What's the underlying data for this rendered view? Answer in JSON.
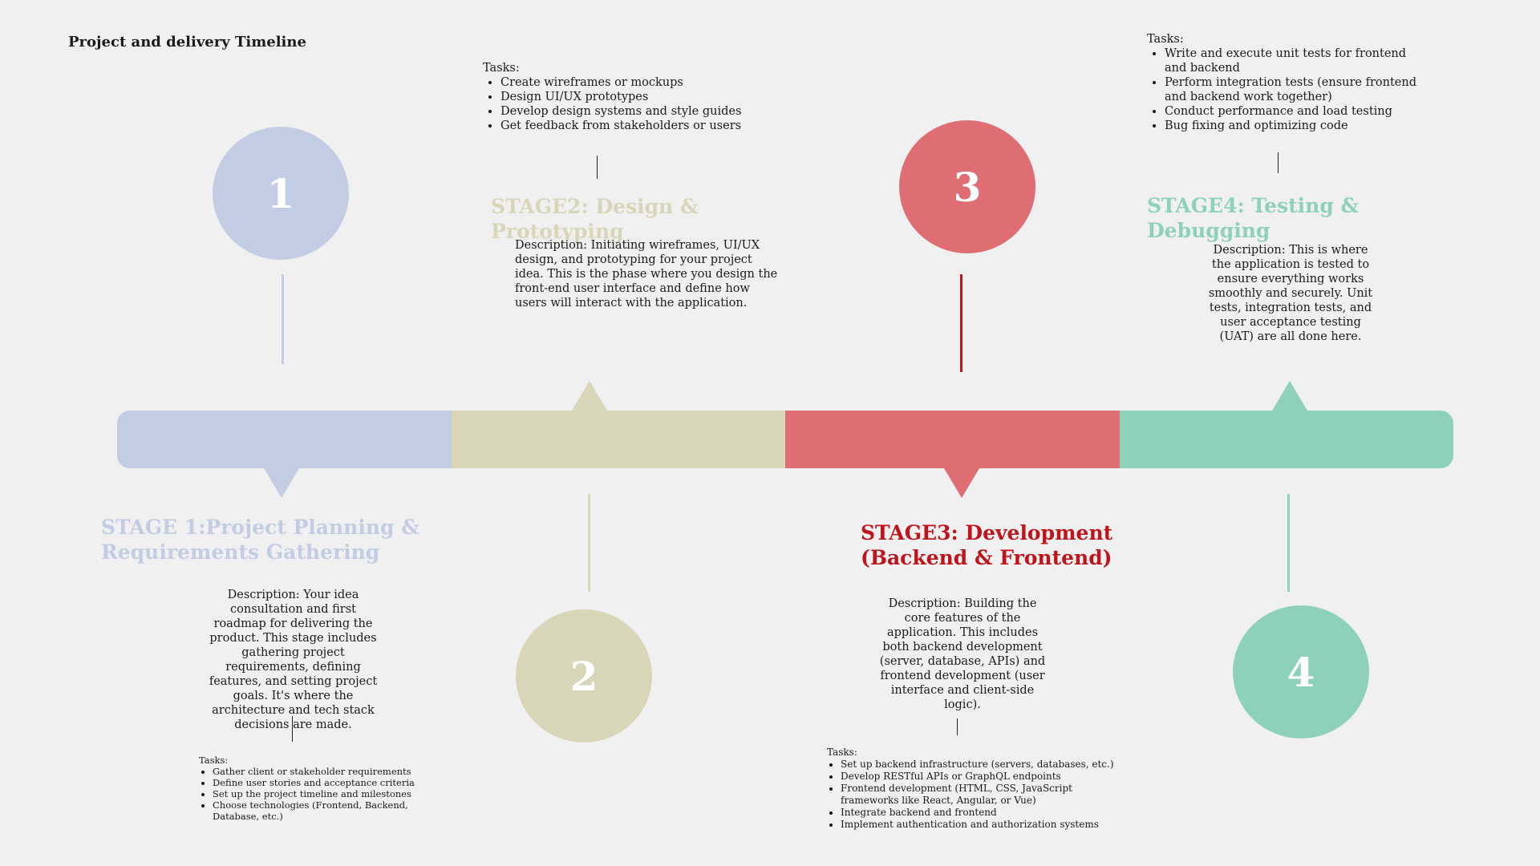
{
  "title": "Project and delivery Timeline",
  "colors": {
    "stage1": "#c2cde3",
    "stage2": "#d8d6b8",
    "stage3": "#de6e73",
    "stage3_title": "#c0141d",
    "stage4": "#8dd1bd"
  },
  "stages": [
    {
      "number": "1",
      "title": "STAGE 1:Project Planning & Requirements Gathering",
      "description": "Description: Your idea consultation and first roadmap for delivering the product. This stage includes gathering project requirements, defining features, and setting project goals. It's where the architecture and tech stack decisions are made.",
      "tasks_label": "Tasks:",
      "tasks": [
        "Gather client or stakeholder requirements",
        "Define user stories and acceptance criteria",
        "Set up the project timeline and milestones",
        "Choose technologies (Frontend, Backend, Database, etc.)"
      ]
    },
    {
      "number": "2",
      "title": "STAGE2: Design & Prototyping",
      "description": "Description: Initiating wireframes, UI/UX design, and prototyping for your project idea. This is the phase where you design the front-end user interface and define how users will interact with the application.",
      "tasks_label": "Tasks:",
      "tasks": [
        "Create wireframes or mockups",
        "Design UI/UX prototypes",
        "Develop design systems and style guides",
        "Get feedback from stakeholders or users"
      ]
    },
    {
      "number": "3",
      "title": "STAGE3: Development (Backend & Frontend)",
      "description": "Description: Building the core features of the application. This includes both backend development (server, database, APIs) and frontend development (user interface and client-side logic).",
      "tasks_label": "Tasks:",
      "tasks": [
        "Set up backend infrastructure (servers, databases, etc.)",
        "Develop RESTful APIs or GraphQL endpoints",
        "Frontend development (HTML, CSS, JavaScript frameworks like React, Angular, or Vue)",
        "Integrate backend and frontend",
        "Implement authentication and authorization systems"
      ]
    },
    {
      "number": "4",
      "title": "STAGE4: Testing & Debugging",
      "description": "Description: This is where the application is tested to ensure everything works smoothly and securely. Unit tests, integration tests, and user acceptance testing (UAT) are all done here.",
      "tasks_label": "Tasks:",
      "tasks": [
        "Write and execute unit tests for frontend and backend",
        "Perform integration tests (ensure frontend and backend work together)",
        "Conduct performance and load testing",
        "Bug fixing and optimizing code"
      ]
    }
  ]
}
